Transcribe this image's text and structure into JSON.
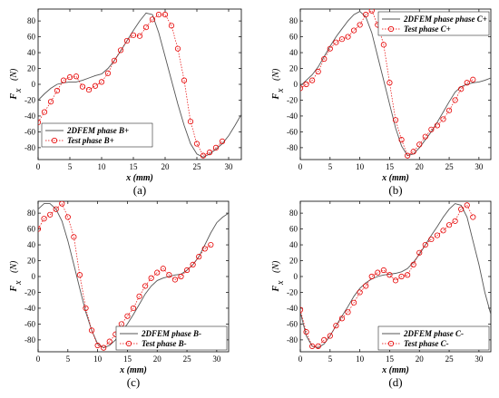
{
  "figure": {
    "background": "#ffffff",
    "sim_color": "#555555",
    "test_color": "#e60000"
  },
  "chart_data": [
    {
      "type": "line",
      "panel_label": "(a)",
      "xlabel": "x (mm)",
      "ylabel_main": "F",
      "ylabel_sub": "x",
      "ylabel_unit": "(N)",
      "xlim": [
        0,
        32
      ],
      "ylim": [
        -95,
        95
      ],
      "xticks": [
        "0",
        "5",
        "10",
        "15",
        "20",
        "25",
        "30"
      ],
      "yticks": [
        "80",
        "60",
        "40",
        "20",
        "0",
        "-20",
        "-40",
        "-60",
        "-80"
      ],
      "legend_position": "bottom-left",
      "series": [
        {
          "name": "2DFEM phase B+",
          "style": "solid",
          "x": [
            0,
            1,
            2,
            3,
            4,
            5,
            6,
            7,
            8,
            9,
            10,
            11,
            12,
            13,
            14,
            15,
            16,
            17,
            18,
            19,
            20,
            21,
            22,
            23,
            24,
            25,
            26,
            27,
            28,
            29,
            30,
            31,
            32
          ],
          "y": [
            -20,
            -12,
            -5,
            0,
            2,
            3,
            3,
            5,
            8,
            11,
            13,
            20,
            30,
            42,
            55,
            68,
            80,
            90,
            88,
            65,
            35,
            5,
            -25,
            -52,
            -75,
            -88,
            -92,
            -88,
            -82,
            -75,
            -65,
            -52,
            -38
          ]
        },
        {
          "name": "Test phase B+",
          "style": "dotted-circles",
          "x": [
            0,
            1,
            2,
            3,
            4,
            5,
            6,
            7,
            8,
            9,
            10,
            11,
            12,
            13,
            14,
            15,
            16,
            17,
            18,
            19,
            20,
            21,
            22,
            23,
            24,
            25,
            26,
            27,
            28,
            29
          ],
          "y": [
            -48,
            -35,
            -22,
            -8,
            5,
            9,
            10,
            -3,
            -7,
            -2,
            3,
            14,
            30,
            43,
            55,
            62,
            61,
            72,
            82,
            88,
            88,
            74,
            45,
            5,
            -47,
            -75,
            -90,
            -86,
            -80,
            -72
          ]
        }
      ]
    },
    {
      "type": "line",
      "panel_label": "(b)",
      "xlabel": "x (mm)",
      "ylabel_main": "F",
      "ylabel_sub": "x",
      "ylabel_unit": "(N)",
      "xlim": [
        0,
        32
      ],
      "ylim": [
        -95,
        95
      ],
      "xticks": [
        "0",
        "5",
        "10",
        "15",
        "20",
        "25",
        "30"
      ],
      "yticks": [
        "80",
        "60",
        "40",
        "20",
        "0",
        "-20",
        "-40",
        "-60",
        "-80"
      ],
      "legend_position": "top-right",
      "series": [
        {
          "name": "2DFEM phase phase C+",
          "style": "solid",
          "x": [
            0,
            1,
            2,
            3,
            4,
            5,
            6,
            7,
            8,
            9,
            10,
            11,
            12,
            13,
            14,
            15,
            16,
            17,
            18,
            19,
            20,
            21,
            22,
            23,
            24,
            25,
            26,
            27,
            28,
            29,
            30,
            31,
            32
          ],
          "y": [
            -2,
            5,
            12,
            22,
            35,
            48,
            60,
            70,
            80,
            88,
            92,
            85,
            65,
            35,
            5,
            -25,
            -55,
            -78,
            -90,
            -88,
            -80,
            -70,
            -60,
            -48,
            -35,
            -22,
            -10,
            -3,
            0,
            2,
            3,
            5,
            8
          ]
        },
        {
          "name": "Test phase C+",
          "style": "dotted-circles",
          "x": [
            0,
            1,
            2,
            3,
            4,
            5,
            6,
            7,
            8,
            9,
            10,
            11,
            12,
            13,
            14,
            15,
            16,
            17,
            18,
            19,
            20,
            21,
            22,
            23,
            24,
            25,
            26,
            27,
            28,
            29
          ],
          "y": [
            -5,
            0,
            5,
            16,
            32,
            45,
            53,
            57,
            60,
            68,
            75,
            88,
            93,
            75,
            50,
            2,
            -45,
            -70,
            -90,
            -85,
            -76,
            -66,
            -57,
            -52,
            -44,
            -33,
            -20,
            -6,
            2,
            6
          ]
        }
      ]
    },
    {
      "type": "line",
      "panel_label": "(c)",
      "xlabel": "x (mm)",
      "ylabel_main": "F",
      "ylabel_sub": "x",
      "ylabel_unit": "(N)",
      "xlim": [
        0,
        32
      ],
      "ylim": [
        -95,
        95
      ],
      "xticks": [
        "0",
        "5",
        "10",
        "15",
        "20",
        "25",
        "30"
      ],
      "yticks": [
        "80",
        "60",
        "40",
        "20",
        "0",
        "-20",
        "-40",
        "-60",
        "-80"
      ],
      "legend_position": "bottom-right",
      "series": [
        {
          "name": "2DFEM phase B-",
          "style": "solid",
          "x": [
            0,
            1,
            2,
            3,
            4,
            5,
            6,
            7,
            8,
            9,
            10,
            11,
            12,
            13,
            14,
            15,
            16,
            17,
            18,
            19,
            20,
            21,
            22,
            23,
            24,
            25,
            26,
            27,
            28,
            29,
            30,
            31,
            32
          ],
          "y": [
            85,
            92,
            92,
            85,
            70,
            45,
            15,
            -15,
            -45,
            -68,
            -85,
            -90,
            -87,
            -80,
            -70,
            -60,
            -48,
            -35,
            -22,
            -12,
            -5,
            -2,
            0,
            2,
            3,
            8,
            15,
            25,
            40,
            55,
            68,
            75,
            80
          ]
        },
        {
          "name": "Test phase B-",
          "style": "dotted-circles",
          "x": [
            0,
            1,
            2,
            3,
            4,
            5,
            6,
            7,
            8,
            9,
            10,
            11,
            12,
            13,
            14,
            15,
            16,
            17,
            18,
            19,
            20,
            21,
            22,
            23,
            24,
            25,
            26,
            27,
            28,
            29
          ],
          "y": [
            60,
            73,
            78,
            85,
            92,
            75,
            50,
            2,
            -40,
            -68,
            -87,
            -90,
            -82,
            -73,
            -60,
            -50,
            -40,
            -25,
            -12,
            -2,
            5,
            10,
            2,
            -4,
            0,
            8,
            15,
            25,
            35,
            40
          ]
        }
      ]
    },
    {
      "type": "line",
      "panel_label": "(d)",
      "xlabel": "x (mm)",
      "ylabel_main": "F",
      "ylabel_sub": "x",
      "ylabel_unit": "(N)",
      "xlim": [
        0,
        32
      ],
      "ylim": [
        -95,
        95
      ],
      "xticks": [
        "0",
        "5",
        "10",
        "15",
        "20",
        "25",
        "30"
      ],
      "yticks": [
        "80",
        "60",
        "40",
        "20",
        "0",
        "-20",
        "-40",
        "-60",
        "-80"
      ],
      "legend_position": "bottom-right",
      "series": [
        {
          "name": "2DFEM phase C-",
          "style": "solid",
          "x": [
            0,
            1,
            2,
            3,
            4,
            5,
            6,
            7,
            8,
            9,
            10,
            11,
            12,
            13,
            14,
            15,
            16,
            17,
            18,
            19,
            20,
            21,
            22,
            23,
            24,
            25,
            26,
            27,
            28,
            29,
            30,
            31,
            32
          ],
          "y": [
            -45,
            -75,
            -88,
            -90,
            -85,
            -75,
            -62,
            -50,
            -38,
            -25,
            -15,
            -8,
            -3,
            0,
            2,
            3,
            4,
            6,
            10,
            18,
            28,
            40,
            52,
            63,
            75,
            85,
            92,
            90,
            75,
            45,
            15,
            -20,
            -48
          ]
        },
        {
          "name": "Test phase C-",
          "style": "dotted-circles",
          "x": [
            0,
            1,
            2,
            3,
            4,
            5,
            6,
            7,
            8,
            9,
            10,
            11,
            12,
            13,
            14,
            15,
            16,
            17,
            18,
            19,
            20,
            21,
            22,
            23,
            24,
            25,
            26,
            27,
            28,
            29
          ],
          "y": [
            -42,
            -70,
            -88,
            -88,
            -80,
            -75,
            -62,
            -53,
            -45,
            -33,
            -20,
            -12,
            0,
            5,
            8,
            2,
            -5,
            0,
            2,
            15,
            30,
            40,
            47,
            52,
            58,
            65,
            70,
            85,
            90,
            75
          ]
        }
      ]
    }
  ]
}
